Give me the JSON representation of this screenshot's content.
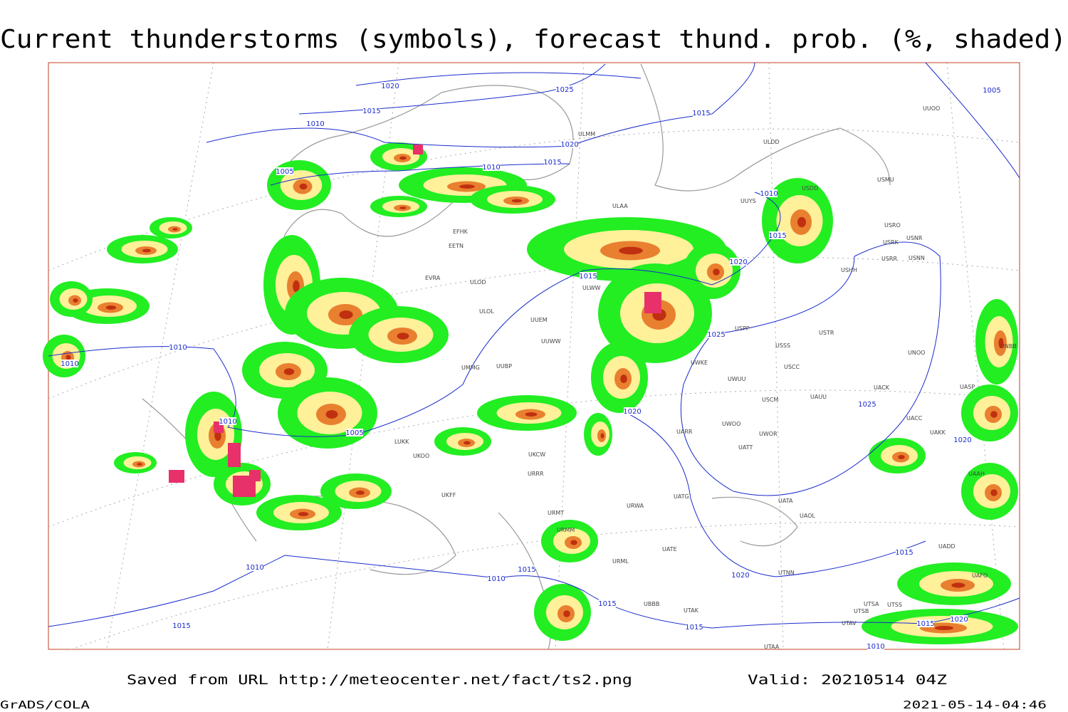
{
  "header": {
    "title": "Current thunderstorms (symbols), forecast thund. prob. (%, shaded)"
  },
  "isobar_labels": [
    "1020",
    "1025",
    "1015",
    "1010",
    "1020",
    "1015",
    "1010",
    "1005",
    "1015",
    "1005",
    "1010",
    "1015",
    "1020",
    "1015",
    "1025",
    "1010",
    "1010",
    "1010",
    "1005",
    "1020",
    "1025",
    "1020",
    "1010",
    "1010",
    "1015",
    "1015",
    "1020",
    "1015",
    "1015",
    "1015",
    "1015",
    "1020",
    "1010"
  ],
  "station_labels": [
    "EFHK",
    "EETN",
    "EVRA",
    "ULAA",
    "ULMM",
    "ULDD",
    "USMU",
    "USRO",
    "USRK",
    "USNR",
    "USRR",
    "USNN",
    "USHH",
    "UUYS",
    "USDD",
    "ULOD",
    "ULOL",
    "UUEM",
    "UUWW",
    "UUBP",
    "UMMG",
    "ULWW",
    "USPP",
    "USTR",
    "USSS",
    "USCC",
    "UWUU",
    "UWKE",
    "USCM",
    "UAUU",
    "UWOO",
    "UWOR",
    "UATT",
    "UARR",
    "UATG",
    "UATA",
    "UAOL",
    "UATE",
    "URML",
    "UTNN",
    "URWA",
    "URMT",
    "URMM",
    "URRR",
    "UKCW",
    "UKOO",
    "UKFF",
    "LUKK",
    "UTAK",
    "UBBB",
    "UTAA",
    "UTSA",
    "UTSS",
    "UTSB",
    "UTAV",
    "UAKK",
    "UACC",
    "UACK",
    "UAAH",
    "UADD",
    "UASP",
    "UNOO",
    "UNBB",
    "UAFO",
    "UUOO"
  ],
  "footer": {
    "source": "Saved from URL http://meteocenter.net/fact/ts2.png",
    "valid": "Valid: 20210514 04Z",
    "software": "GrADS/COLA",
    "timestamp": "2021-05-14-04:46"
  }
}
